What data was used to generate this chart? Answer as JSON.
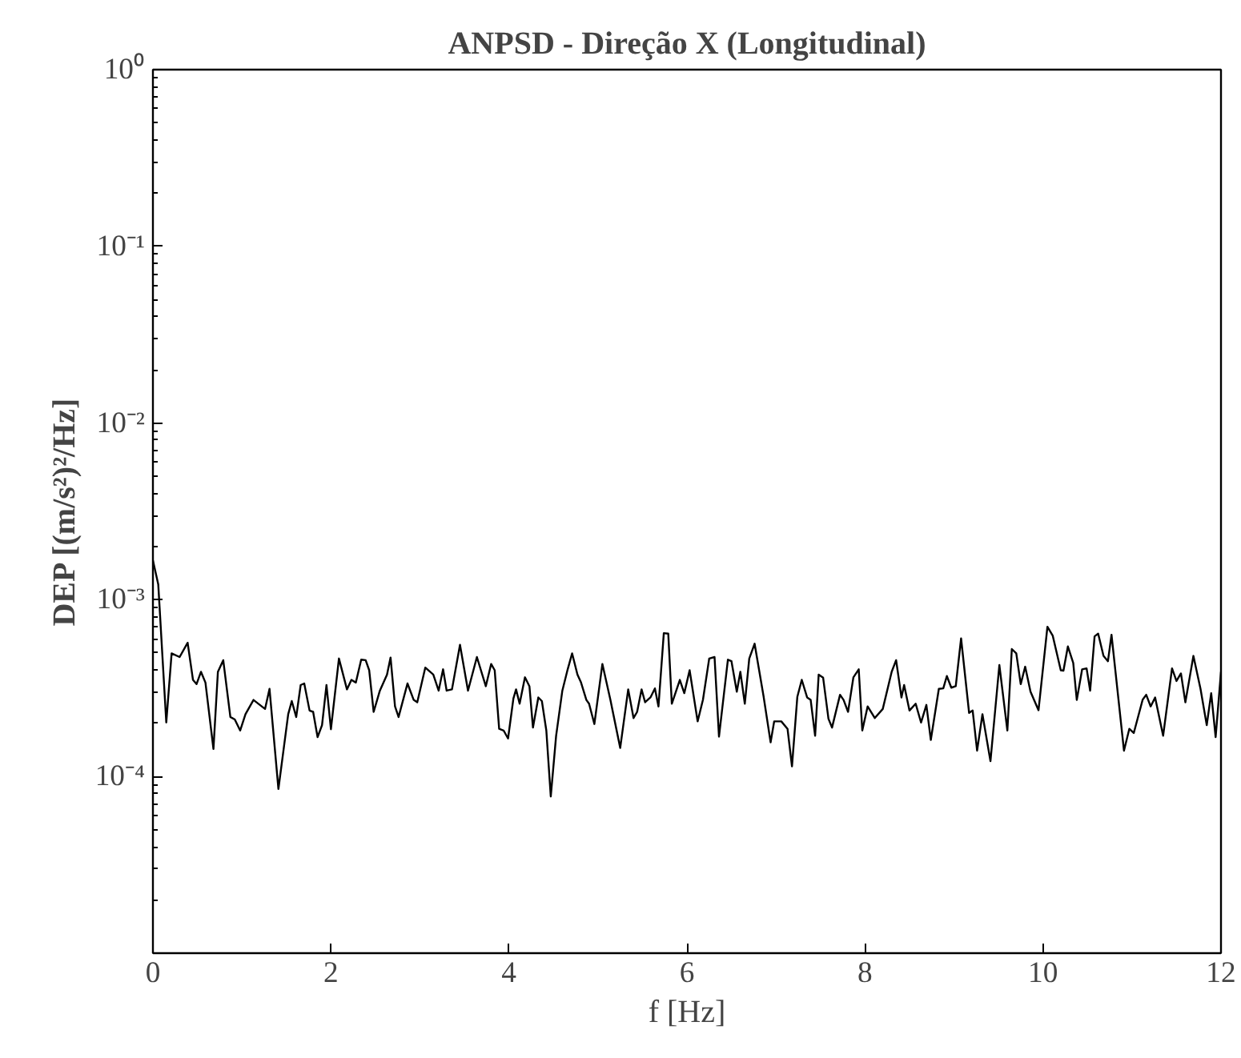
{
  "chart_data": {
    "type": "line",
    "title": "ANPSD - Direção X (Longitudinal)",
    "xlabel": "f [Hz]",
    "ylabel": "DEP [(m/s²)²/Hz]",
    "log": "y",
    "grid": false,
    "xlim": [
      0,
      12
    ],
    "xticks": [
      0,
      2,
      4,
      6,
      8,
      10,
      12
    ],
    "ylim": [
      1e-05,
      1
    ],
    "yticks": [
      {
        "value": 0.0001,
        "label": "10⁻⁴"
      },
      {
        "value": 0.001,
        "label": "10⁻³"
      },
      {
        "value": 0.01,
        "label": "10⁻²"
      },
      {
        "value": 0.1,
        "label": "10⁻¹"
      },
      {
        "value": 1,
        "label": "10⁰"
      }
    ],
    "series": [
      {
        "color": "#000000",
        "x": [
          0,
          0.06,
          0.15,
          0.21,
          0.3,
          0.39,
          0.45,
          0.49,
          0.54,
          0.59,
          0.68,
          0.73,
          0.79,
          0.87,
          0.92,
          0.98,
          1.04,
          1.13,
          1.26,
          1.31,
          1.41,
          1.52,
          1.56,
          1.61,
          1.66,
          1.7,
          1.76,
          1.8,
          1.85,
          1.9,
          1.95,
          2.0,
          2.09,
          2.18,
          2.23,
          2.28,
          2.34,
          2.39,
          2.43,
          2.48,
          2.55,
          2.63,
          2.67,
          2.72,
          2.76,
          2.86,
          2.93,
          2.97,
          3.06,
          3.15,
          3.21,
          3.26,
          3.3,
          3.36,
          3.45,
          3.54,
          3.64,
          3.74,
          3.8,
          3.84,
          3.89,
          3.94,
          3.99,
          4.05,
          4.08,
          4.12,
          4.18,
          4.23,
          4.27,
          4.33,
          4.37,
          4.42,
          4.47,
          4.53,
          4.6,
          4.66,
          4.71,
          4.77,
          4.81,
          4.87,
          4.9,
          4.96,
          5.05,
          5.14,
          5.25,
          5.34,
          5.4,
          5.44,
          5.49,
          5.53,
          5.59,
          5.64,
          5.68,
          5.74,
          5.79,
          5.83,
          5.92,
          5.97,
          6.03,
          6.12,
          6.18,
          6.25,
          6.31,
          6.36,
          6.46,
          6.5,
          6.56,
          6.6,
          6.65,
          6.7,
          6.76,
          6.86,
          6.94,
          6.98,
          7.06,
          7.13,
          7.18,
          7.24,
          7.29,
          7.35,
          7.39,
          7.44,
          7.48,
          7.53,
          7.59,
          7.63,
          7.72,
          7.76,
          7.81,
          7.87,
          7.93,
          7.97,
          8.03,
          8.11,
          8.2,
          8.3,
          8.35,
          8.41,
          8.44,
          8.5,
          8.57,
          8.63,
          8.69,
          8.74,
          8.83,
          8.88,
          8.92,
          8.97,
          9.02,
          9.08,
          9.17,
          9.21,
          9.26,
          9.32,
          9.41,
          9.51,
          9.6,
          9.65,
          9.7,
          9.75,
          9.8,
          9.86,
          9.95,
          10.05,
          10.11,
          10.2,
          10.23,
          10.28,
          10.34,
          10.38,
          10.44,
          10.49,
          10.53,
          10.58,
          10.62,
          10.68,
          10.73,
          10.77,
          10.91,
          10.97,
          11.02,
          11.12,
          11.16,
          11.21,
          11.26,
          11.35,
          11.45,
          11.5,
          11.55,
          11.6,
          11.69,
          11.77,
          11.84,
          11.89,
          11.94,
          12.0
        ],
        "values": [
          0.00167,
          0.00122,
          0.000202,
          0.000497,
          0.000474,
          0.000571,
          0.000352,
          0.000333,
          0.000391,
          0.00034,
          0.000143,
          0.000391,
          0.000455,
          0.000217,
          0.00021,
          0.000182,
          0.000225,
          0.000271,
          0.000241,
          0.000313,
          8.5e-05,
          0.000225,
          0.000267,
          0.000217,
          0.000329,
          0.000336,
          0.000236,
          0.000232,
          0.000167,
          0.000195,
          0.000329,
          0.000185,
          0.000465,
          0.000311,
          0.000352,
          0.00034,
          0.000458,
          0.000455,
          0.000399,
          0.000232,
          0.000306,
          0.000377,
          0.000471,
          0.000249,
          0.000217,
          0.000336,
          0.000271,
          0.000263,
          0.000413,
          0.000377,
          0.000306,
          0.000404,
          0.000306,
          0.000311,
          0.000556,
          0.000306,
          0.000474,
          0.000324,
          0.000433,
          0.000399,
          0.000186,
          0.000182,
          0.000164,
          0.000276,
          0.000311,
          0.000258,
          0.000364,
          0.000324,
          0.000189,
          0.00028,
          0.000267,
          0.000182,
          7.7e-05,
          0.00017,
          0.000306,
          0.000404,
          0.000497,
          0.000377,
          0.00034,
          0.000271,
          0.000258,
          0.000198,
          0.000433,
          0.000271,
          0.000145,
          0.000311,
          0.000214,
          0.000232,
          0.000311,
          0.000263,
          0.00028,
          0.000315,
          0.000249,
          0.000647,
          0.000643,
          0.000258,
          0.000352,
          0.000296,
          0.000399,
          0.000205,
          0.000272,
          0.000465,
          0.000474,
          0.000168,
          0.000458,
          0.000449,
          0.000302,
          0.000391,
          0.000258,
          0.000465,
          0.000564,
          0.000286,
          0.000156,
          0.000205,
          0.000205,
          0.000186,
          0.000114,
          0.000282,
          0.000352,
          0.00028,
          0.000271,
          0.00017,
          0.000377,
          0.000362,
          0.000212,
          0.000189,
          0.00029,
          0.000271,
          0.000232,
          0.000364,
          0.000404,
          0.000182,
          0.000249,
          0.000214,
          0.000241,
          0.000391,
          0.000455,
          0.00028,
          0.000329,
          0.000236,
          0.000258,
          0.000202,
          0.000254,
          0.000161,
          0.000313,
          0.000315,
          0.00037,
          0.000318,
          0.000324,
          0.000604,
          0.000229,
          0.000236,
          0.00014,
          0.000225,
          0.000122,
          0.000427,
          0.000182,
          0.000526,
          0.000497,
          0.000333,
          0.000418,
          0.000302,
          0.000237,
          0.000703,
          0.000625,
          0.000399,
          0.000397,
          0.000544,
          0.000439,
          0.000271,
          0.000404,
          0.000409,
          0.000306,
          0.000621,
          0.000643,
          0.000481,
          0.000449,
          0.000634,
          0.00014,
          0.000186,
          0.000176,
          0.000272,
          0.00029,
          0.000249,
          0.00028,
          0.00017,
          0.000409,
          0.000347,
          0.000383,
          0.000263,
          0.000481,
          0.000313,
          0.000195,
          0.000296,
          0.000167,
          0.000391
        ]
      }
    ]
  }
}
